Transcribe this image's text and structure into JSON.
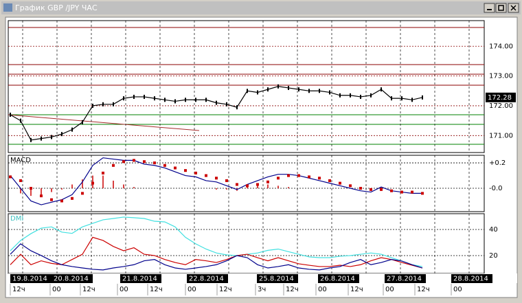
{
  "window": {
    "title": "График GBP /JPY ЧАС"
  },
  "chart_data": [
    {
      "type": "line",
      "categories": [
        null,
        null,
        null,
        null,
        null,
        null,
        null,
        null,
        null,
        null,
        null,
        null,
        null,
        null,
        null,
        null,
        null,
        null,
        null,
        null,
        null,
        null,
        null,
        null,
        null,
        null,
        null,
        null,
        null,
        null,
        null,
        null,
        null,
        null,
        null,
        null,
        null,
        null,
        null,
        null,
        null
      ],
      "series": [
        {
          "color": "#000000",
          "values": [
            171.7,
            171.5,
            170.85,
            170.9,
            170.95,
            171.05,
            171.2,
            171.45,
            172.0,
            172.05,
            172.05,
            172.25,
            172.3,
            172.3,
            172.25,
            172.2,
            172.15,
            172.2,
            172.2,
            172.2,
            172.1,
            172.05,
            171.95,
            172.5,
            172.45,
            172.55,
            172.65,
            172.6,
            172.55,
            172.5,
            172.5,
            172.45,
            172.35,
            172.35,
            172.3,
            172.35,
            172.55,
            172.25,
            172.25,
            172.2,
            172.28
          ]
        }
      ],
      "ylim": [
        170.43,
        174.86
      ],
      "yticks": [
        {
          "value": 174,
          "label": "174.00"
        },
        {
          "value": 173,
          "label": "173.00"
        },
        {
          "value": 172,
          "label": "172.00"
        },
        {
          "value": 171,
          "label": "171.00"
        }
      ],
      "current_price": 172.28,
      "grid": true
    },
    {
      "type": "macd",
      "title": "MACD",
      "categories": [
        null,
        null,
        null,
        null,
        null,
        null,
        null,
        null,
        null,
        null,
        null,
        null,
        null,
        null,
        null,
        null,
        null,
        null,
        null,
        null,
        null,
        null,
        null,
        null,
        null,
        null,
        null,
        null,
        null,
        null,
        null,
        null,
        null,
        null,
        null,
        null,
        null,
        null,
        null,
        null,
        null
      ],
      "series": [
        {
          "color": "#00008b",
          "values": [
            0.1,
            0,
            -0.1,
            -0.13,
            -0.11,
            -0.09,
            -0.05,
            0.05,
            0.18,
            0.24,
            0.23,
            0.22,
            0.22,
            0.19,
            0.18,
            0.16,
            0.13,
            0.1,
            0.09,
            0.06,
            0.05,
            0.02,
            -0.01,
            0.03,
            0.06,
            0.09,
            0.11,
            0.11,
            0.1,
            0.08,
            0.06,
            0.04,
            0.02,
            0,
            -0.02,
            -0.03,
            0.01,
            -0.02,
            -0.03,
            -0.04,
            -0.04
          ]
        },
        {
          "color": "#cc0000",
          "values": [
            0.09,
            0.06,
            0,
            -0.06,
            -0.09,
            -0.1,
            -0.08,
            -0.04,
            0.04,
            0.12,
            0.18,
            0.21,
            0.22,
            0.21,
            0.2,
            0.18,
            0.16,
            0.14,
            0.12,
            0.1,
            0.08,
            0.06,
            0.03,
            0.02,
            0.03,
            0.05,
            0.08,
            0.1,
            0.1,
            0.09,
            0.08,
            0.06,
            0.04,
            0.02,
            0,
            -0.01,
            -0.01,
            -0.02,
            -0.03,
            -0.03,
            -0.04
          ]
        },
        {
          "color": "#cc0000",
          "values": [
            0,
            -0.04,
            -0.06,
            -0.05,
            -0.03,
            -0.01,
            0.03,
            0.07,
            0.1,
            0.1,
            0.06,
            0.03,
            0.01,
            0,
            0,
            0,
            0,
            0,
            0,
            0,
            -0.01,
            -0.01,
            -0.02,
            0.02,
            0.04,
            0.03,
            0.02,
            0.01,
            0,
            0,
            0,
            0,
            0,
            0,
            -0.01,
            -0.01,
            0.01,
            0,
            0,
            0,
            0
          ]
        }
      ],
      "ylim": [
        -0.184,
        0.26
      ],
      "yticks": [
        {
          "value": 0.2,
          "label": "+0.2"
        },
        {
          "value": 0,
          "label": "-0.0"
        }
      ],
      "grid": true
    },
    {
      "type": "line",
      "title": "DMI",
      "categories": [
        null,
        null,
        null,
        null,
        null,
        null,
        null,
        null,
        null,
        null,
        null,
        null,
        null,
        null,
        null,
        null,
        null,
        null,
        null,
        null,
        null,
        null,
        null,
        null,
        null,
        null,
        null,
        null,
        null,
        null,
        null,
        null,
        null,
        null,
        null,
        null,
        null,
        null,
        null,
        null,
        null
      ],
      "series": [
        {
          "color": "#40e0e0",
          "values": [
            23.7,
            31.6,
            36.8,
            41,
            42,
            38,
            37,
            42,
            44.7,
            47.4,
            48.4,
            49.5,
            49,
            48.4,
            46.3,
            45.8,
            42,
            34,
            29,
            25,
            22,
            20.5,
            20,
            21,
            22,
            24,
            25,
            23,
            21,
            19,
            18.4,
            18.4,
            19.5,
            20,
            21,
            22,
            21,
            18.4,
            15.8,
            13,
            11.6
          ]
        },
        {
          "color": "#cc0000",
          "values": [
            13,
            21,
            13,
            16,
            14,
            13,
            17,
            21,
            34,
            31.6,
            27,
            23.7,
            26,
            21,
            20,
            17,
            14.7,
            13,
            17,
            16,
            14.7,
            17,
            20,
            21,
            18.4,
            16,
            18.4,
            16,
            13.7,
            12.6,
            11.6,
            11.6,
            12.6,
            11.6,
            13,
            16,
            18.4,
            17,
            14.7,
            12.6,
            10.5
          ]
        },
        {
          "color": "#00008b",
          "values": [
            21,
            29,
            23.7,
            20,
            16,
            13,
            11.6,
            10.5,
            9.5,
            9,
            10.5,
            11.6,
            13,
            16,
            17,
            13,
            10.5,
            9.5,
            10.5,
            11.6,
            13,
            16,
            20,
            18.4,
            13,
            10.5,
            11.6,
            13,
            10.5,
            9.5,
            9,
            10.5,
            11.6,
            14.7,
            17,
            13,
            14.7,
            17,
            15.8,
            13,
            10.5
          ]
        }
      ],
      "ylim": [
        6.3,
        52.1
      ],
      "yticks": [
        40,
        20
      ],
      "grid": true
    }
  ],
  "time_axis": {
    "dates": [
      "19.8.2014",
      "20.8.2014",
      "21.8.2014",
      "22.8.2014",
      "25.8.2014",
      "26.8.2014",
      "27.8.2014",
      "28.8.2014"
    ],
    "hours": [
      "12ч",
      "00",
      "12ч",
      "00",
      "12ч",
      "00",
      "12ч",
      "3ч",
      "12ч",
      "00",
      "12ч",
      "00",
      "12ч",
      "00"
    ]
  }
}
